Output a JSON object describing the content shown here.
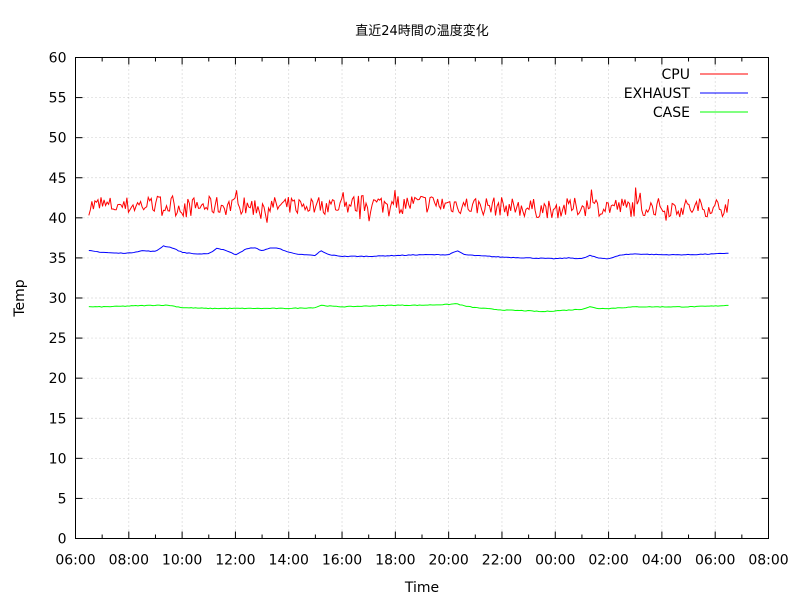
{
  "chart_data": {
    "type": "line",
    "title": "直近24時間の温度変化",
    "xlabel": "Time",
    "ylabel": "Temp",
    "ylim": [
      0,
      60
    ],
    "yticks": [
      "0",
      "5",
      "10",
      "15",
      "20",
      "25",
      "30",
      "35",
      "40",
      "45",
      "50",
      "55",
      "60"
    ],
    "xlim_hours": [
      6,
      32
    ],
    "xticks": [
      "06:00",
      "08:00",
      "10:00",
      "12:00",
      "14:00",
      "16:00",
      "18:00",
      "20:00",
      "22:00",
      "00:00",
      "02:00",
      "04:00",
      "06:00",
      "08:00"
    ],
    "grid": true,
    "legend_position": "top-right",
    "series": [
      {
        "name": "CPU",
        "color": "#ff0000",
        "noisy": true,
        "x": [
          6.5,
          8.0,
          9.0,
          10.0,
          11.0,
          12.0,
          13.0,
          14.0,
          15.0,
          16.0,
          17.0,
          18.0,
          19.0,
          20.0,
          21.0,
          22.0,
          23.0,
          24.0,
          25.0,
          26.0,
          27.0,
          28.0,
          29.0,
          30.0,
          30.5
        ],
        "values": [
          41.5,
          41.5,
          41.7,
          41.3,
          41.5,
          41.5,
          41.4,
          41.5,
          41.6,
          41.6,
          41.7,
          41.7,
          41.8,
          41.7,
          41.5,
          41.4,
          41.2,
          41.1,
          41.4,
          41.4,
          41.3,
          41.3,
          41.2,
          41.4,
          41.2
        ]
      },
      {
        "name": "EXHAUST",
        "color": "#0000ff",
        "noisy": false,
        "x": [
          6.5,
          7.0,
          7.5,
          8.0,
          8.5,
          9.0,
          9.3,
          9.6,
          10.0,
          10.5,
          11.0,
          11.3,
          11.6,
          12.0,
          12.4,
          12.7,
          13.0,
          13.4,
          13.7,
          14.0,
          14.5,
          15.0,
          15.2,
          15.5,
          16.0,
          17.0,
          18.0,
          19.0,
          20.0,
          20.3,
          20.6,
          21.0,
          22.0,
          23.0,
          24.0,
          24.5,
          25.0,
          25.3,
          25.6,
          26.0,
          26.5,
          27.0,
          28.0,
          29.0,
          30.0,
          30.5
        ],
        "values": [
          35.9,
          35.7,
          35.6,
          35.6,
          35.9,
          35.8,
          36.5,
          36.3,
          35.7,
          35.5,
          35.5,
          36.2,
          36.0,
          35.4,
          36.1,
          36.3,
          35.9,
          36.3,
          36.1,
          35.7,
          35.4,
          35.3,
          35.9,
          35.4,
          35.2,
          35.2,
          35.3,
          35.4,
          35.4,
          35.9,
          35.4,
          35.3,
          35.1,
          35.0,
          34.9,
          35.0,
          34.9,
          35.3,
          35.0,
          34.9,
          35.4,
          35.5,
          35.4,
          35.4,
          35.5,
          35.6
        ]
      },
      {
        "name": "CASE",
        "color": "#00ff00",
        "noisy": false,
        "x": [
          6.5,
          7.0,
          8.0,
          9.0,
          9.5,
          10.0,
          11.0,
          12.0,
          13.0,
          14.0,
          15.0,
          15.2,
          15.5,
          16.0,
          17.0,
          18.0,
          19.0,
          20.0,
          20.3,
          20.6,
          21.0,
          22.0,
          23.0,
          23.5,
          24.0,
          25.0,
          25.3,
          25.6,
          26.0,
          27.0,
          28.0,
          29.0,
          30.0,
          30.5
        ],
        "values": [
          28.9,
          28.9,
          29.0,
          29.1,
          29.1,
          28.8,
          28.7,
          28.7,
          28.7,
          28.7,
          28.8,
          29.1,
          29.0,
          28.9,
          29.0,
          29.1,
          29.1,
          29.2,
          29.3,
          29.0,
          28.8,
          28.5,
          28.4,
          28.3,
          28.4,
          28.6,
          28.9,
          28.7,
          28.7,
          28.9,
          28.9,
          28.9,
          29.0,
          29.1
        ]
      }
    ]
  }
}
